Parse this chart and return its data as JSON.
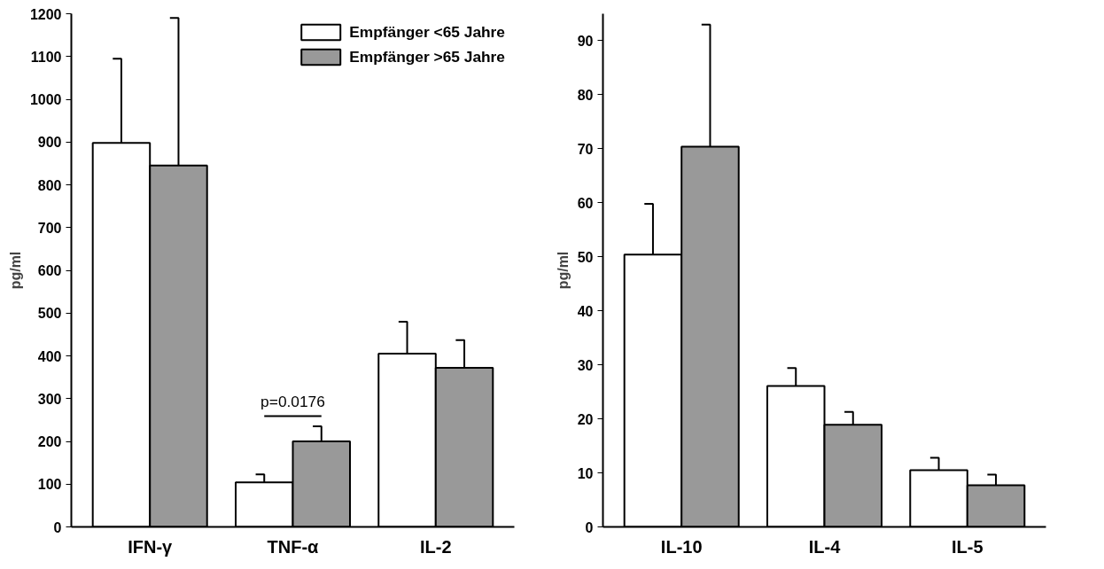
{
  "chart_data": [
    {
      "type": "bar",
      "ylabel": "pg/ml",
      "categories": [
        "IFN-γ",
        "TNF-α",
        "IL-2"
      ],
      "ylim": [
        0,
        1200
      ],
      "yticks": [
        0,
        100,
        200,
        300,
        400,
        500,
        600,
        700,
        800,
        900,
        1000,
        1100,
        1200
      ],
      "grid": false,
      "legend": "top right",
      "series": [
        {
          "name": "Empfänger <65 Jahre",
          "color": "#ffffff",
          "values": [
            898,
            104,
            405
          ],
          "errors": [
            [
              898,
              1095
            ],
            [
              104,
              123
            ],
            [
              405,
              480
            ]
          ]
        },
        {
          "name": "Empfänger >65 Jahre",
          "color": "#999999",
          "values": [
            845,
            200,
            372
          ],
          "errors": [
            [
              845,
              1190
            ],
            [
              200,
              235
            ],
            [
              372,
              437
            ]
          ]
        }
      ],
      "annotations": [
        "p=0.0176"
      ]
    },
    {
      "type": "bar",
      "ylabel": "pg/ml",
      "categories": [
        "IL-10",
        "IL-4",
        "IL-5"
      ],
      "ylim": [
        0,
        95
      ],
      "yticks": [
        0,
        10,
        20,
        30,
        40,
        50,
        60,
        70,
        80,
        90
      ],
      "grid": false,
      "series": [
        {
          "color": "#ffffff",
          "values": [
            50.4,
            26.1,
            10.5
          ],
          "errors": [
            [
              50.4,
              59.8
            ],
            [
              26.1,
              29.4
            ],
            [
              10.5,
              12.8
            ]
          ]
        },
        {
          "color": "#999999",
          "values": [
            70.4,
            18.9,
            7.7
          ],
          "errors": [
            [
              70.4,
              93
            ],
            [
              18.9,
              21.3
            ],
            [
              7.7,
              9.7
            ]
          ]
        }
      ]
    }
  ]
}
